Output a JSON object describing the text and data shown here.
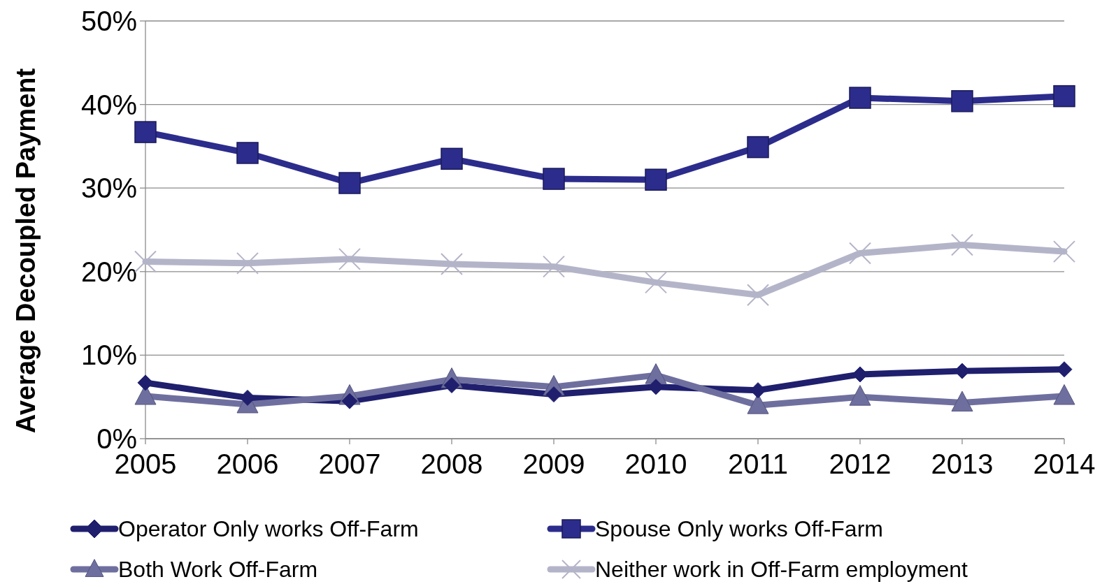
{
  "chart_data": {
    "type": "line",
    "ylabel": "Average Decoupled Payment",
    "categories": [
      "2005",
      "2006",
      "2007",
      "2008",
      "2009",
      "2010",
      "2011",
      "2012",
      "2013",
      "2014"
    ],
    "ylim": [
      0,
      50
    ],
    "yticks": [
      {
        "value": 0,
        "label": "0%"
      },
      {
        "value": 10,
        "label": "10%"
      },
      {
        "value": 20,
        "label": "20%"
      },
      {
        "value": 30,
        "label": "30%"
      },
      {
        "value": 40,
        "label": "40%"
      },
      {
        "value": 50,
        "label": "50%"
      }
    ],
    "grid": "y",
    "legend": "bottom",
    "line_style": "solid",
    "series": [
      {
        "name": "Operator Only works Off-Farm",
        "color": "#1f1f6e",
        "marker": "diamond",
        "values": [
          6.7,
          4.9,
          4.5,
          6.4,
          5.3,
          6.2,
          5.8,
          7.7,
          8.1,
          8.3
        ]
      },
      {
        "name": "Spouse Only works Off-Farm",
        "color": "#2c2c8c",
        "marker": "square",
        "values": [
          36.7,
          34.2,
          30.6,
          33.5,
          31.1,
          31.0,
          34.9,
          40.8,
          40.4,
          41.0
        ]
      },
      {
        "name": "Both Work Off-Farm",
        "color": "#6f6f9f",
        "marker": "triangle",
        "values": [
          5.1,
          4.1,
          5.1,
          7.1,
          6.2,
          7.6,
          4.0,
          5.0,
          4.3,
          5.1
        ]
      },
      {
        "name": "Neither work in Off-Farm employment",
        "color": "#b4b4c9",
        "marker": "cross",
        "values": [
          21.2,
          21.0,
          21.5,
          20.9,
          20.6,
          18.7,
          17.2,
          22.2,
          23.2,
          22.4
        ]
      }
    ]
  }
}
